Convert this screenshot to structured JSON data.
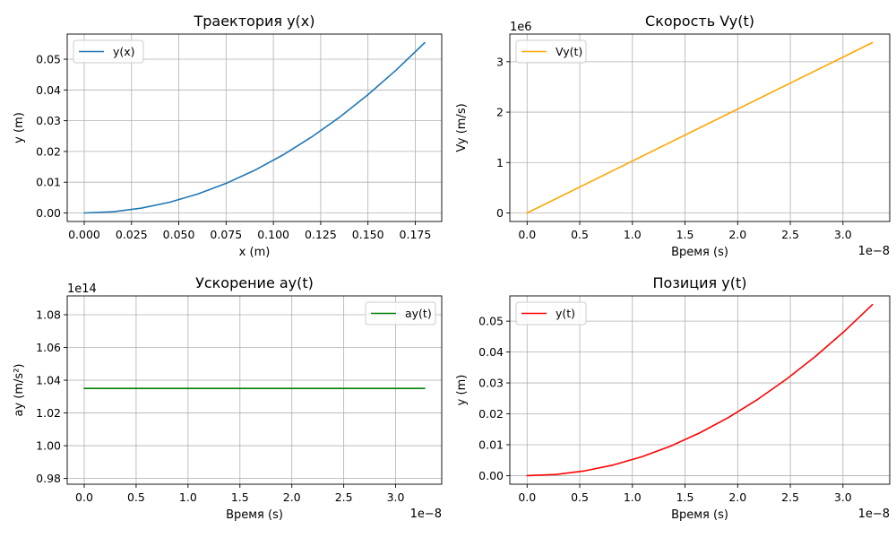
{
  "chart_data": [
    {
      "type": "line",
      "title": "Траектория y(x)",
      "xlabel": "x (m)",
      "ylabel": "y (m)",
      "x_offset_label": "",
      "y_offset_label": "",
      "xlim": [
        -0.009,
        0.189
      ],
      "ylim": [
        -0.00277,
        0.05817
      ],
      "x_ticks": [
        0.0,
        0.025,
        0.05,
        0.075,
        0.1,
        0.125,
        0.15,
        0.175
      ],
      "x_tick_labels": [
        "0.000",
        "0.025",
        "0.050",
        "0.075",
        "0.100",
        "0.125",
        "0.150",
        "0.175"
      ],
      "y_ticks": [
        0.0,
        0.01,
        0.02,
        0.03,
        0.04,
        0.05
      ],
      "y_tick_labels": [
        "0.00",
        "0.01",
        "0.02",
        "0.03",
        "0.04",
        "0.05"
      ],
      "grid": true,
      "legend_position": "upper-left",
      "series": [
        {
          "name": "y(x)",
          "color": "#1f77b4",
          "x": [
            0.0,
            0.015,
            0.03,
            0.045,
            0.06,
            0.075,
            0.09,
            0.105,
            0.12,
            0.135,
            0.15,
            0.165,
            0.18
          ],
          "y": [
            0.0,
            0.00038,
            0.00154,
            0.00346,
            0.00615,
            0.00961,
            0.01384,
            0.01884,
            0.02461,
            0.03114,
            0.03845,
            0.04652,
            0.05536
          ]
        }
      ]
    },
    {
      "type": "line",
      "title": "Скорость Vy(t)",
      "xlabel": "Время (s)",
      "ylabel": "Vy (m/s)",
      "x_offset_label": "1e−8",
      "y_offset_label": "1e6",
      "xlim": [
        -0.164,
        3.444
      ],
      "ylim": [
        -0.169,
        3.549
      ],
      "x_ticks": [
        0.0,
        0.5,
        1.0,
        1.5,
        2.0,
        2.5,
        3.0
      ],
      "x_tick_labels": [
        "0.0",
        "0.5",
        "1.0",
        "1.5",
        "2.0",
        "2.5",
        "3.0"
      ],
      "y_ticks": [
        0,
        1,
        2,
        3
      ],
      "y_tick_labels": [
        "0",
        "1",
        "2",
        "3"
      ],
      "grid": true,
      "legend_position": "upper-left",
      "series": [
        {
          "name": "Vy(t)",
          "color": "#ffa500",
          "x": [
            0.0,
            3.28
          ],
          "y": [
            0.0,
            3.38
          ]
        }
      ]
    },
    {
      "type": "line",
      "title": "Ускорение ay(t)",
      "xlabel": "Время (s)",
      "ylabel": "ay (m/s²)",
      "x_offset_label": "1e−8",
      "y_offset_label": "1e14",
      "xlim": [
        -0.164,
        3.444
      ],
      "ylim": [
        0.9765,
        1.0915
      ],
      "x_ticks": [
        0.0,
        0.5,
        1.0,
        1.5,
        2.0,
        2.5,
        3.0
      ],
      "x_tick_labels": [
        "0.0",
        "0.5",
        "1.0",
        "1.5",
        "2.0",
        "2.5",
        "3.0"
      ],
      "y_ticks": [
        0.98,
        1.0,
        1.02,
        1.04,
        1.06,
        1.08
      ],
      "y_tick_labels": [
        "0.98",
        "1.00",
        "1.02",
        "1.04",
        "1.06",
        "1.08"
      ],
      "grid": true,
      "legend_position": "upper-right",
      "series": [
        {
          "name": "ay(t)",
          "color": "#008000",
          "x": [
            0.0,
            3.28
          ],
          "y": [
            1.035,
            1.035
          ]
        }
      ]
    },
    {
      "type": "line",
      "title": "Позиция y(t)",
      "xlabel": "Время (s)",
      "ylabel": "y (m)",
      "x_offset_label": "1e−8",
      "y_offset_label": "",
      "xlim": [
        -0.164,
        3.444
      ],
      "ylim": [
        -0.00277,
        0.05817
      ],
      "x_ticks": [
        0.0,
        0.5,
        1.0,
        1.5,
        2.0,
        2.5,
        3.0
      ],
      "x_tick_labels": [
        "0.0",
        "0.5",
        "1.0",
        "1.5",
        "2.0",
        "2.5",
        "3.0"
      ],
      "y_ticks": [
        0.0,
        0.01,
        0.02,
        0.03,
        0.04,
        0.05
      ],
      "y_tick_labels": [
        "0.00",
        "0.01",
        "0.02",
        "0.03",
        "0.04",
        "0.05"
      ],
      "grid": true,
      "legend_position": "upper-left",
      "series": [
        {
          "name": "y(t)",
          "color": "#ff0000",
          "x": [
            0.0,
            0.2733,
            0.5467,
            0.82,
            1.0933,
            1.3667,
            1.64,
            1.9133,
            2.1867,
            2.46,
            2.7333,
            3.0067,
            3.28
          ],
          "y": [
            0.0,
            0.00038,
            0.00154,
            0.00346,
            0.00615,
            0.00961,
            0.01384,
            0.01884,
            0.02461,
            0.03114,
            0.03845,
            0.04652,
            0.05536
          ]
        }
      ]
    }
  ]
}
